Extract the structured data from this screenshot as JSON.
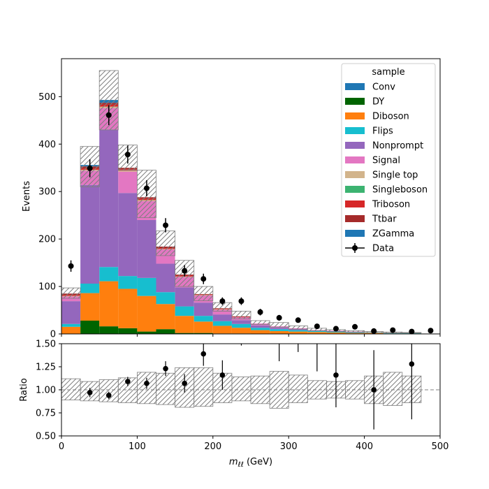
{
  "chart_data": [
    {
      "type": "bar",
      "stacked": true,
      "ylabel": "Events",
      "ylim": [
        0,
        580
      ],
      "xlim": [
        0,
        500
      ],
      "yticks": [
        0,
        100,
        200,
        300,
        400,
        500
      ],
      "bin_edges": [
        0,
        25,
        50,
        75,
        100,
        125,
        150,
        175,
        200,
        225,
        250,
        275,
        300,
        325,
        350,
        375,
        400,
        425,
        450,
        475
      ],
      "legend": {
        "title": "sample",
        "placement": "top-right"
      },
      "series": [
        {
          "name": "Conv",
          "color": "#1f77b4",
          "values": [
            0,
            0,
            0,
            0,
            0,
            0,
            0,
            0,
            0,
            0,
            0,
            0,
            0,
            0,
            0,
            0,
            0,
            0,
            0
          ]
        },
        {
          "name": "DY",
          "color": "#006400",
          "values": [
            0,
            28,
            16,
            12,
            5,
            10,
            2,
            2,
            1,
            1,
            0,
            0,
            0,
            0,
            0,
            0,
            0,
            0,
            0
          ]
        },
        {
          "name": "Diboson",
          "color": "#ff7f0e",
          "values": [
            15,
            58,
            95,
            83,
            75,
            53,
            36,
            24,
            16,
            12,
            8,
            6,
            5,
            4,
            3,
            2,
            2,
            1,
            1
          ]
        },
        {
          "name": "Flips",
          "color": "#17becf",
          "values": [
            6,
            20,
            30,
            27,
            38,
            25,
            20,
            12,
            10,
            8,
            5,
            4,
            3,
            2,
            2,
            1,
            1,
            1,
            1
          ]
        },
        {
          "name": "Nonprompt",
          "color": "#9467bd",
          "values": [
            48,
            208,
            290,
            175,
            122,
            60,
            40,
            28,
            14,
            8,
            5,
            3,
            2,
            1,
            1,
            1,
            0,
            0,
            0
          ]
        },
        {
          "name": "Signal",
          "color": "#e377c2",
          "values": [
            10,
            30,
            45,
            45,
            40,
            30,
            22,
            15,
            10,
            6,
            4,
            3,
            2,
            1,
            1,
            1,
            0,
            0,
            0
          ]
        },
        {
          "name": "Single top",
          "color": "#d2b48c",
          "values": [
            1,
            2,
            3,
            2,
            2,
            1,
            1,
            1,
            1,
            0,
            0,
            0,
            0,
            0,
            0,
            0,
            0,
            0,
            0
          ]
        },
        {
          "name": "Singleboson",
          "color": "#3cb371",
          "values": [
            0,
            0,
            0,
            0,
            0,
            0,
            0,
            0,
            0,
            0,
            0,
            0,
            0,
            0,
            0,
            0,
            0,
            0,
            0
          ]
        },
        {
          "name": "Triboson",
          "color": "#d62728",
          "values": [
            2,
            3,
            4,
            3,
            3,
            2,
            2,
            1,
            1,
            1,
            0,
            0,
            0,
            0,
            0,
            0,
            0,
            0,
            0
          ]
        },
        {
          "name": "Ttbar",
          "color": "#a52a2a",
          "values": [
            3,
            4,
            4,
            3,
            3,
            3,
            2,
            1,
            1,
            1,
            0,
            0,
            0,
            0,
            0,
            0,
            0,
            0,
            0
          ]
        },
        {
          "name": "ZGamma",
          "color": "#1f77b4",
          "values": [
            0,
            3,
            6,
            0,
            0,
            0,
            0,
            0,
            0,
            0,
            0,
            0,
            0,
            0,
            0,
            0,
            0,
            0,
            0
          ]
        }
      ],
      "uncertainty_band": {
        "down": [
          75,
          310,
          430,
          345,
          245,
          165,
          100,
          70,
          48,
          32,
          20,
          14,
          10,
          7,
          5,
          4,
          3,
          2,
          2
        ],
        "up": [
          97,
          395,
          555,
          398,
          345,
          217,
          155,
          100,
          66,
          48,
          28,
          24,
          17,
          12,
          9,
          7,
          5,
          4,
          3
        ]
      },
      "data_series": {
        "name": "Data",
        "x": [
          12.5,
          37.5,
          62.5,
          87.5,
          112.5,
          137.5,
          162.5,
          187.5,
          212.5,
          237.5,
          262.5,
          287.5,
          312.5,
          337.5,
          362.5,
          387.5,
          412.5,
          437.5,
          462.5,
          487.5
        ],
        "y": [
          143,
          349,
          461,
          378,
          307,
          229,
          133,
          116,
          69,
          69,
          46,
          34,
          29,
          16,
          11,
          15,
          6,
          8,
          5,
          7
        ],
        "yerr": [
          12,
          19,
          21,
          19,
          17,
          15,
          12,
          11,
          8,
          8,
          7,
          6,
          5,
          4,
          3,
          4,
          2,
          3,
          2,
          3
        ]
      }
    },
    {
      "type": "scatter",
      "xlabel": "m_ℓℓ (GeV)",
      "ylabel": "Ratio",
      "ylim": [
        0.5,
        1.5
      ],
      "xlim": [
        0,
        500
      ],
      "xticks": [
        0,
        100,
        200,
        300,
        400,
        500
      ],
      "yticks": [
        0.5,
        0.75,
        1.0,
        1.25,
        1.5
      ],
      "reference_line": 1.0,
      "band": {
        "bin_edges": [
          0,
          25,
          50,
          75,
          100,
          125,
          150,
          175,
          200,
          225,
          250,
          275,
          300,
          325,
          350,
          375,
          400,
          425,
          450,
          475
        ],
        "down": [
          0.89,
          0.88,
          0.87,
          0.86,
          0.85,
          0.84,
          0.81,
          0.82,
          0.86,
          0.88,
          0.85,
          0.8,
          0.86,
          0.9,
          0.91,
          0.9,
          0.85,
          0.83,
          0.86
        ],
        "up": [
          1.12,
          1.09,
          1.11,
          1.13,
          1.19,
          1.18,
          1.24,
          1.24,
          1.18,
          1.14,
          1.15,
          1.2,
          1.16,
          1.1,
          1.09,
          1.1,
          1.15,
          1.19,
          1.15
        ]
      },
      "points": {
        "x": [
          37.5,
          62.5,
          87.5,
          112.5,
          137.5,
          162.5,
          187.5,
          212.5,
          362.5,
          412.5,
          462.5
        ],
        "y": [
          0.97,
          0.94,
          1.09,
          1.07,
          1.23,
          1.07,
          1.39,
          1.16,
          1.16,
          1.0,
          1.28
        ],
        "yerr": [
          0.05,
          0.04,
          0.05,
          0.06,
          0.08,
          0.1,
          0.13,
          0.16,
          0.35,
          0.43,
          0.6
        ]
      },
      "offscale_points": {
        "x": [
          237.5,
          287.5,
          312.5,
          337.5
        ],
        "err_low": [
          1.48,
          1.31,
          1.41,
          1.2
        ]
      }
    }
  ]
}
